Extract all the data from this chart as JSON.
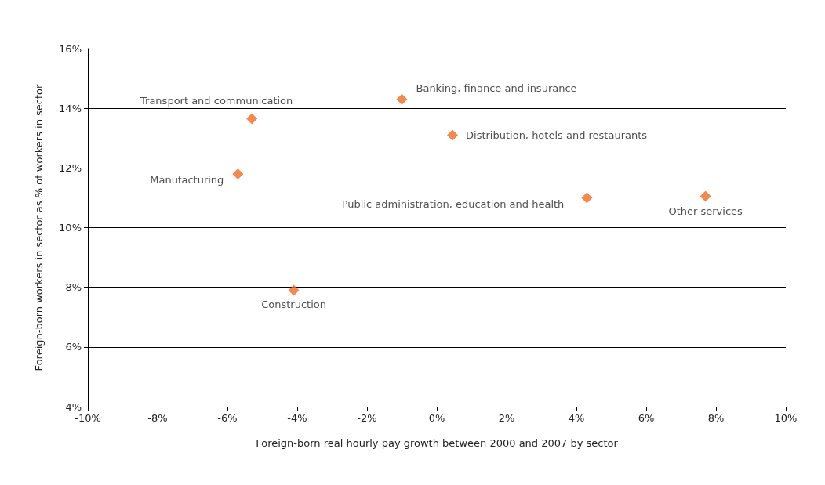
{
  "chart_data": {
    "type": "scatter",
    "xlabel": "Foreign-born real hourly pay growth between 2000 and 2007 by sector",
    "ylabel": "Foreign-born workers in sector as % of workers in sector",
    "series": [
      {
        "name": "Transport and communication",
        "color": "#f26b21",
        "x": [
          -5.3
        ],
        "values": [
          13.65
        ]
      },
      {
        "name": "Banking, finance and insurance",
        "color": "#f26b21",
        "x": [
          -1.0
        ],
        "values": [
          14.3
        ]
      },
      {
        "name": "Distribution, hotels and restaurants",
        "color": "#f26b21",
        "x": [
          0.45
        ],
        "values": [
          13.1
        ]
      },
      {
        "name": "Manufacturing",
        "color": "#f26b21",
        "x": [
          -5.7
        ],
        "values": [
          11.8
        ]
      },
      {
        "name": "Public administration, education and health",
        "color": "#f26b21",
        "x": [
          4.3
        ],
        "values": [
          11.0
        ]
      },
      {
        "name": "Other services",
        "color": "#f26b21",
        "x": [
          7.7
        ],
        "values": [
          11.05
        ]
      },
      {
        "name": "Construction",
        "color": "#f26b21",
        "x": [
          -4.1
        ],
        "values": [
          7.9
        ]
      }
    ],
    "xlim": [
      -10,
      10
    ],
    "xticks": [
      {
        "value": -10,
        "label": "-10%"
      },
      {
        "value": -8,
        "label": "-8%"
      },
      {
        "value": -6,
        "label": "-6%"
      },
      {
        "value": -4,
        "label": "-4%"
      },
      {
        "value": -2,
        "label": "-2%"
      },
      {
        "value": 0,
        "label": "0%"
      },
      {
        "value": 2,
        "label": "2%"
      },
      {
        "value": 4,
        "label": "4%"
      },
      {
        "value": 6,
        "label": "6%"
      },
      {
        "value": 8,
        "label": "8%"
      },
      {
        "value": 10,
        "label": "10%"
      }
    ],
    "ylim": [
      4,
      16
    ],
    "yticks": [
      {
        "value": 4,
        "label": "4%"
      },
      {
        "value": 6,
        "label": "6%"
      },
      {
        "value": 8,
        "label": "8%"
      },
      {
        "value": 10,
        "label": "10%"
      },
      {
        "value": 12,
        "label": "12%"
      },
      {
        "value": 14,
        "label": "14%"
      },
      {
        "value": 16,
        "label": "16%"
      }
    ],
    "grid": "y",
    "legend": false,
    "marker": "diamond"
  }
}
